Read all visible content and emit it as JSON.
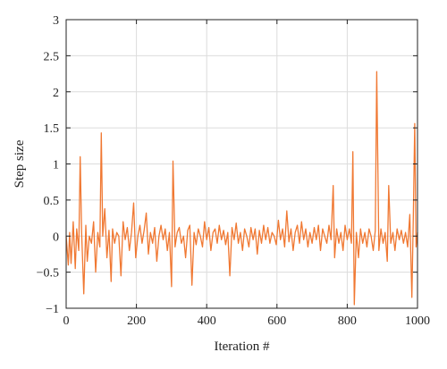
{
  "chart_data": {
    "type": "line",
    "title": "",
    "xlabel": "Iteration #",
    "ylabel": "Step size",
    "xlim": [
      0,
      1000
    ],
    "ylim": [
      -1,
      3
    ],
    "x_ticks": [
      0,
      200,
      400,
      600,
      800,
      1000
    ],
    "y_ticks": [
      -1,
      -0.5,
      0,
      0.5,
      1,
      1.5,
      2,
      2.5,
      3
    ],
    "x_tick_labels": [
      "0",
      "200",
      "400",
      "600",
      "800",
      "1000"
    ],
    "y_tick_labels": [
      "−1",
      "−0.5",
      "0",
      "0.5",
      "1",
      "1.5",
      "2",
      "2.5",
      "3"
    ],
    "grid": true,
    "series": [
      {
        "color": "#f07832",
        "x": [
          0,
          6,
          10,
          14,
          20,
          26,
          30,
          36,
          40,
          44,
          50,
          56,
          60,
          66,
          72,
          78,
          84,
          90,
          96,
          100,
          104,
          110,
          116,
          122,
          128,
          132,
          138,
          144,
          150,
          156,
          162,
          168,
          174,
          180,
          186,
          192,
          198,
          204,
          210,
          216,
          222,
          228,
          234,
          240,
          246,
          252,
          258,
          264,
          270,
          276,
          282,
          288,
          294,
          300,
          304,
          310,
          316,
          322,
          328,
          334,
          340,
          346,
          352,
          358,
          364,
          370,
          376,
          382,
          388,
          394,
          400,
          406,
          412,
          418,
          424,
          430,
          436,
          442,
          448,
          454,
          460,
          466,
          472,
          478,
          484,
          490,
          496,
          502,
          508,
          514,
          520,
          526,
          532,
          538,
          544,
          550,
          556,
          562,
          568,
          574,
          580,
          586,
          592,
          598,
          604,
          610,
          616,
          622,
          628,
          634,
          640,
          646,
          652,
          658,
          664,
          670,
          676,
          682,
          688,
          694,
          700,
          706,
          712,
          718,
          724,
          730,
          736,
          742,
          748,
          754,
          760,
          764,
          770,
          776,
          782,
          788,
          794,
          800,
          806,
          812,
          816,
          820,
          826,
          832,
          838,
          844,
          850,
          856,
          862,
          868,
          874,
          880,
          884,
          890,
          896,
          902,
          908,
          914,
          918,
          924,
          930,
          936,
          942,
          948,
          954,
          960,
          966,
          972,
          978,
          984,
          988,
          992,
          996,
          1000
        ],
        "values": [
          0.0,
          -0.4,
          0.05,
          -0.38,
          0.2,
          -0.45,
          0.1,
          -0.2,
          1.1,
          0.05,
          -0.8,
          0.15,
          -0.35,
          0.0,
          -0.1,
          0.2,
          -0.5,
          0.05,
          -0.15,
          1.43,
          0.0,
          0.38,
          -0.3,
          0.08,
          -0.63,
          0.1,
          -0.1,
          0.05,
          0.0,
          -0.55,
          0.2,
          -0.05,
          0.12,
          -0.2,
          0.05,
          0.46,
          -0.3,
          0.0,
          0.15,
          -0.1,
          0.08,
          0.32,
          -0.25,
          0.05,
          -0.1,
          0.12,
          -0.35,
          0.0,
          0.15,
          -0.05,
          0.1,
          -0.2,
          0.05,
          -0.7,
          1.04,
          -0.15,
          0.05,
          0.12,
          -0.1,
          0.0,
          -0.3,
          0.08,
          0.15,
          -0.68,
          0.05,
          -0.12,
          0.1,
          0.0,
          -0.15,
          0.2,
          -0.05,
          0.12,
          -0.2,
          0.05,
          0.1,
          -0.1,
          0.15,
          -0.05,
          0.08,
          -0.12,
          0.05,
          -0.55,
          0.12,
          -0.05,
          0.18,
          -0.1,
          0.05,
          -0.2,
          0.1,
          0.0,
          -0.15,
          0.12,
          -0.05,
          0.1,
          -0.25,
          0.08,
          -0.1,
          0.15,
          -0.05,
          0.12,
          -0.1,
          0.05,
          0.0,
          -0.12,
          0.22,
          -0.05,
          0.1,
          -0.15,
          0.35,
          -0.08,
          0.1,
          -0.2,
          0.05,
          0.15,
          -0.1,
          0.2,
          -0.05,
          0.1,
          -0.15,
          0.05,
          -0.1,
          0.12,
          -0.05,
          0.15,
          -0.2,
          0.1,
          0.0,
          -0.1,
          0.15,
          -0.05,
          0.7,
          -0.3,
          0.1,
          -0.1,
          0.05,
          -0.2,
          0.15,
          -0.05,
          0.1,
          -0.1,
          1.17,
          -0.95,
          0.05,
          -0.3,
          0.1,
          -0.1,
          0.05,
          -0.15,
          0.1,
          0.0,
          -0.2,
          0.08,
          2.28,
          -0.2,
          0.1,
          -0.1,
          0.05,
          -0.35,
          0.7,
          -0.1,
          0.05,
          -0.2,
          0.1,
          -0.05,
          0.08,
          -0.1,
          0.05,
          -0.15,
          0.3,
          -0.85,
          0.25,
          1.56,
          -0.15,
          0.05
        ]
      }
    ]
  }
}
